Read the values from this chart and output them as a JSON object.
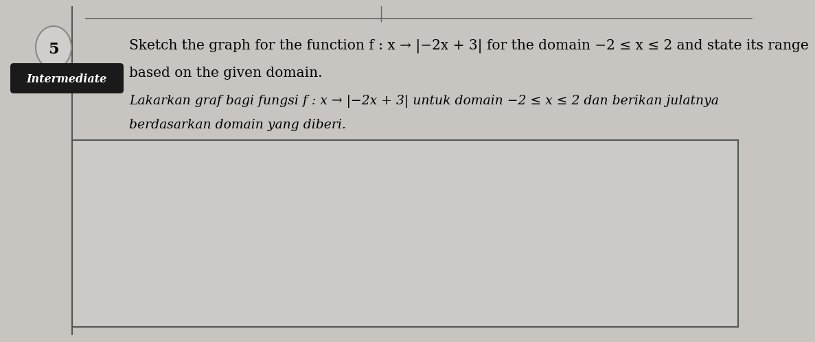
{
  "page_bg": "#c8c5c0",
  "paper_bg": "#d5d3ce",
  "box_bg": "#cccac6",
  "box_inner_bg": "#d0cecc",
  "border_color": "#555555",
  "top_line_color": "#666666",
  "question_number": "5",
  "badge_text": "Intermediate",
  "badge_bg": "#1a1a1a",
  "badge_text_color": "#ffffff",
  "line1": "Sketch the graph for the function f : x → |−2x + 3| for the domain −2 ≤ x ≤ 2 and state its range",
  "line2": "based on the given domain.",
  "line3": "Lakarkan graf bagi fungsi f : x → |−2x + 3| untuk domain −2 ≤ x ≤ 2 dan berikan julatnya",
  "line4": "berdasarkan domain yang diberi.",
  "font_size_english": 14.5,
  "font_size_malay": 13.5,
  "font_size_badge": 11.5
}
